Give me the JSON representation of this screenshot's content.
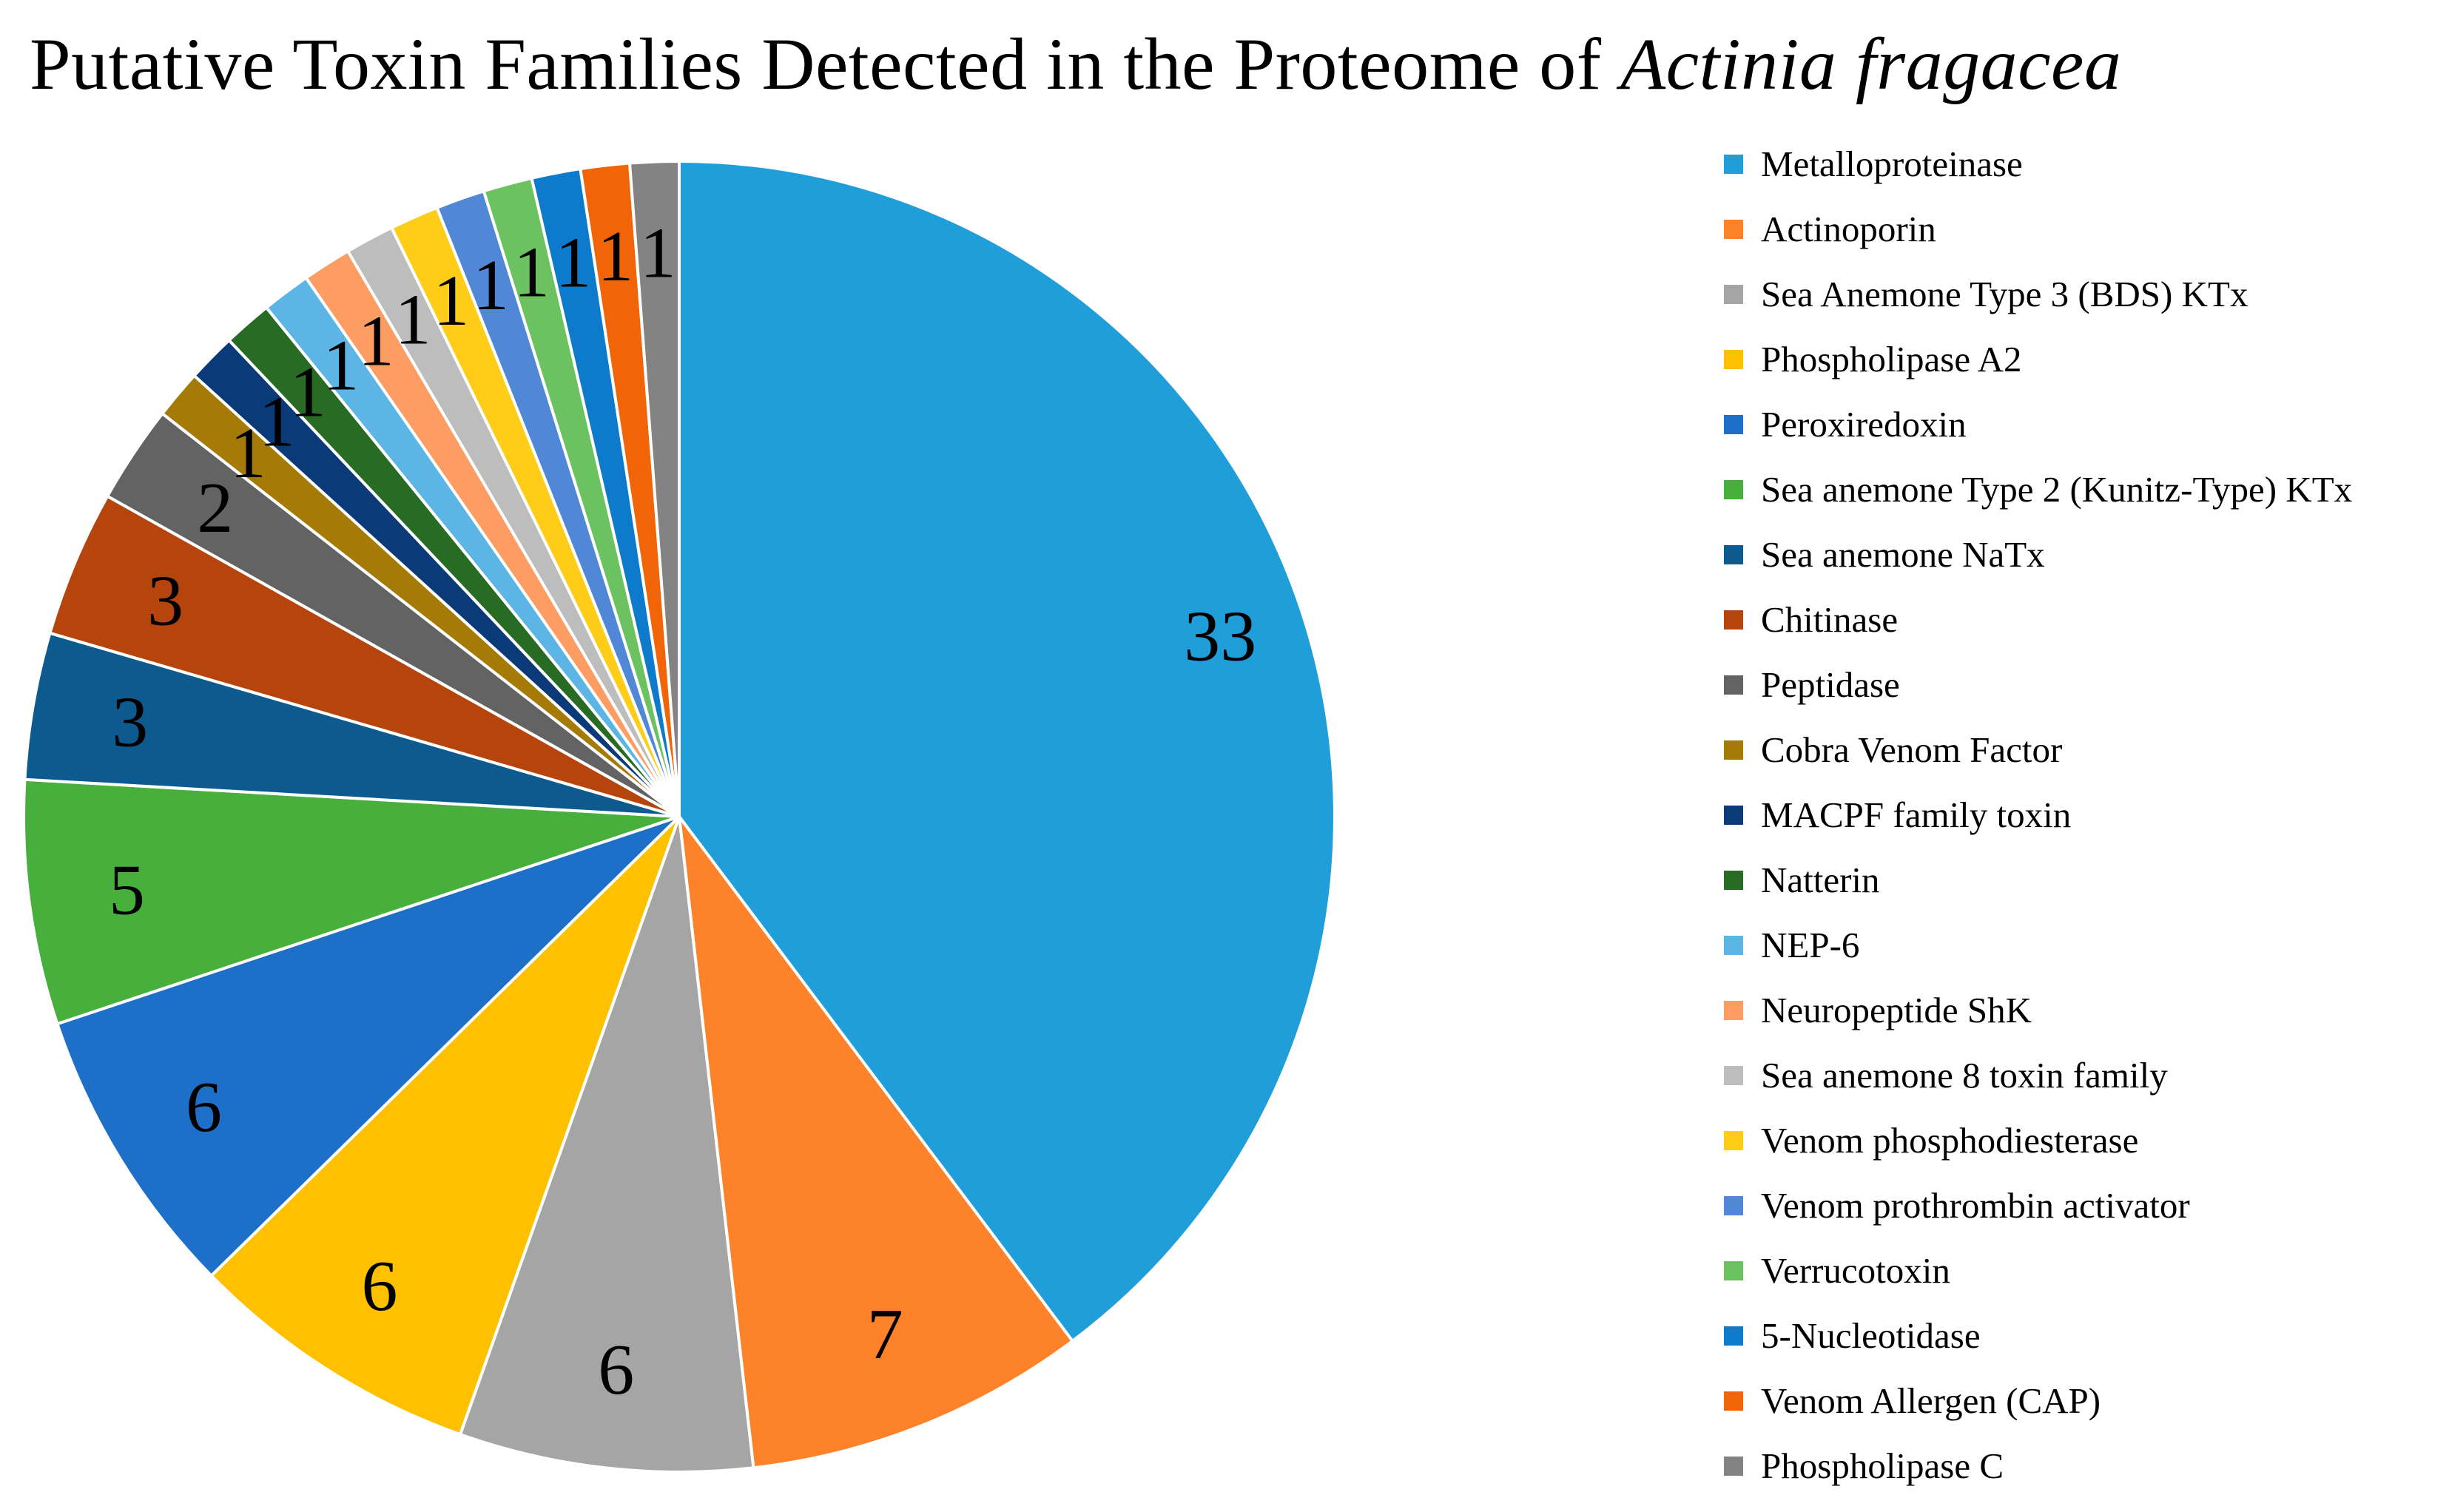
{
  "chart_data": {
    "type": "pie",
    "title": "Putative Toxin Families Detected in the Proteome of",
    "title_italic": "Actinia fragacea",
    "legend_position": "right",
    "start_angle_deg": 0,
    "direction": "clockwise",
    "slices": [
      {
        "label": "Metalloproteinase",
        "value": 33,
        "color": "#1F9ED9"
      },
      {
        "label": "Actinoporin",
        "value": 7,
        "color": "#FD8229"
      },
      {
        "label": "Sea Anemone Type 3 (BDS) KTx",
        "value": 6,
        "color": "#A5A5A5"
      },
      {
        "label": "Phospholipase A2",
        "value": 6,
        "color": "#FFC000"
      },
      {
        "label": "Peroxiredoxin",
        "value": 6,
        "color": "#1E6FC8"
      },
      {
        "label": "Sea anemone Type 2 (Kunitz-Type) KTx",
        "value": 5,
        "color": "#47B03C"
      },
      {
        "label": "Sea anemone NaTx",
        "value": 3,
        "color": "#0D5A8E"
      },
      {
        "label": "Chitinase",
        "value": 3,
        "color": "#B5440D"
      },
      {
        "label": "Peptidase",
        "value": 2,
        "color": "#636363"
      },
      {
        "label": "Cobra Venom Factor",
        "value": 1,
        "color": "#A67A07"
      },
      {
        "label": "MACPF family toxin",
        "value": 1,
        "color": "#0B3A78"
      },
      {
        "label": "Natterin",
        "value": 1,
        "color": "#276B25"
      },
      {
        "label": "NEP-6",
        "value": 1,
        "color": "#5CB5E5"
      },
      {
        "label": "Neuropeptide ShK",
        "value": 1,
        "color": "#FD9D64"
      },
      {
        "label": "Sea anemone 8 toxin family",
        "value": 1,
        "color": "#BDBDBD"
      },
      {
        "label": "Venom phosphodiesterase",
        "value": 1,
        "color": "#FFCD17"
      },
      {
        "label": "Venom prothrombin activator",
        "value": 1,
        "color": "#5087D6"
      },
      {
        "label": "Verrucotoxin",
        "value": 1,
        "color": "#6CC260"
      },
      {
        "label": "5-Nucleotidase",
        "value": 1,
        "color": "#0E7ACB"
      },
      {
        "label": "Venom Allergen (CAP)",
        "value": 1,
        "color": "#F16407"
      },
      {
        "label": "Phospholipase C",
        "value": 1,
        "color": "#838383"
      }
    ]
  }
}
